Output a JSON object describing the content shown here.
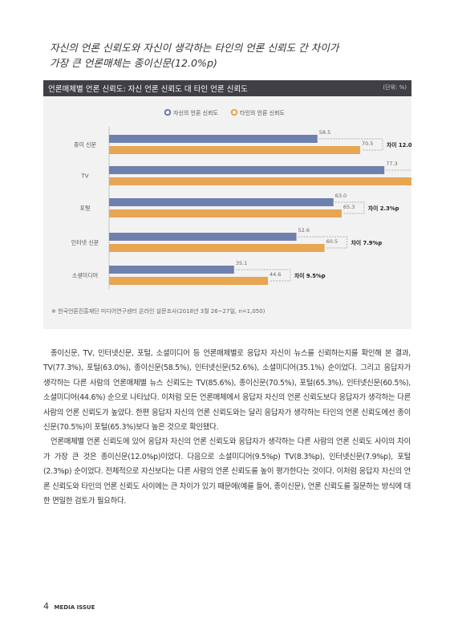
{
  "headline": {
    "line1": "자신의 언론 신뢰도와 자신이 생각하는 타인의 언론 신뢰도 간 차이가",
    "line2": "가장 큰 언론매체는 종이신문(12.0%p)"
  },
  "colors": {
    "series_self": "#6e80ad",
    "series_others": "#e6a652",
    "header_bg": "#3f3f45",
    "panel_bg": "#f2f2f2"
  },
  "chart_data": {
    "type": "bar",
    "orientation": "horizontal",
    "title": "언론매체별 언론 신뢰도: 자신 언론 신뢰도 대 타인 언론 신뢰도",
    "unit": "(단위: %)",
    "categories": [
      "종이 신문",
      "TV",
      "포털",
      "인터넷 신문",
      "소셜미디어"
    ],
    "series": [
      {
        "name": "자신의 언론 신뢰도",
        "values": [
          58.5,
          77.3,
          63.0,
          52.6,
          35.1
        ]
      },
      {
        "name": "타인의 언론 신뢰도",
        "values": [
          70.5,
          85.6,
          65.3,
          60.5,
          44.6
        ]
      }
    ],
    "differences": [
      "차이 12.0%p",
      "차이 8.3%p",
      "차이 2.3%p",
      "차이 7.9%p",
      "차이 9.5%p"
    ],
    "xlim": [
      0,
      100
    ],
    "legend_position": "top-center",
    "grid": false,
    "source": "※ 한국언론진흥재단 미디어연구센터 온라인 설문조사(2018년 3월 26~27일, n=1,050)"
  },
  "body": {
    "p1": "종이신문, TV, 인터넷신문, 포털, 소셜미디어 등 언론매체별로 응답자 자신이 뉴스를 신뢰하는지를 확인해 본 결과, TV(77.3%), 포털(63.0%), 종이신문(58.5%), 인터넷신문(52.6%), 소셜미디어(35.1%) 순이었다. 그리고 응답자가 생각하는 다른 사람의 언론매체별 뉴스 신뢰도는 TV(85.6%), 종이신문(70.5%), 포털(65.3%), 인터넷신문(60.5%), 소셜미디어(44.6%) 순으로 나타났다. 이처럼 모든 언론매체에서 응답자 자신의 언론 신뢰도보다 응답자가 생각하는 다른 사람의 언론 신뢰도가 높았다. 한편 응답자 자신의 언론 신뢰도와는 달리 응답자가 생각하는 타인의 언론 신뢰도에선 종이신문(70.5%)이 포털(65.3%)보다 높은 것으로 확인됐다.",
    "p2": "언론매체별 언론 신뢰도에 있어 응답자 자신의 언론 신뢰도와 응답자가 생각하는 다른 사람의 언론 신뢰도 사이의 차이가 가장 큰 것은 종이신문(12.0%p)이었다. 다음으로 소셜미디어(9.5%p) TV(8.3%p), 인터넷신문(7.9%p), 포털(2.3%p) 순이었다. 전체적으로 자신보다는 다른 사람의 언론 신뢰도를 높이 평가한다는 것이다. 이처럼 응답자 자신의 언론 신뢰도와 타인의 언론 신뢰도 사이에는 큰 차이가 있기 때문에(예를 들어, 종이신문), 언론 신뢰도를 질문하는 방식에 대한 면밀한 검토가 필요하다."
  },
  "footer": {
    "page": "4",
    "magazine": "MEDIA ISSUE"
  }
}
